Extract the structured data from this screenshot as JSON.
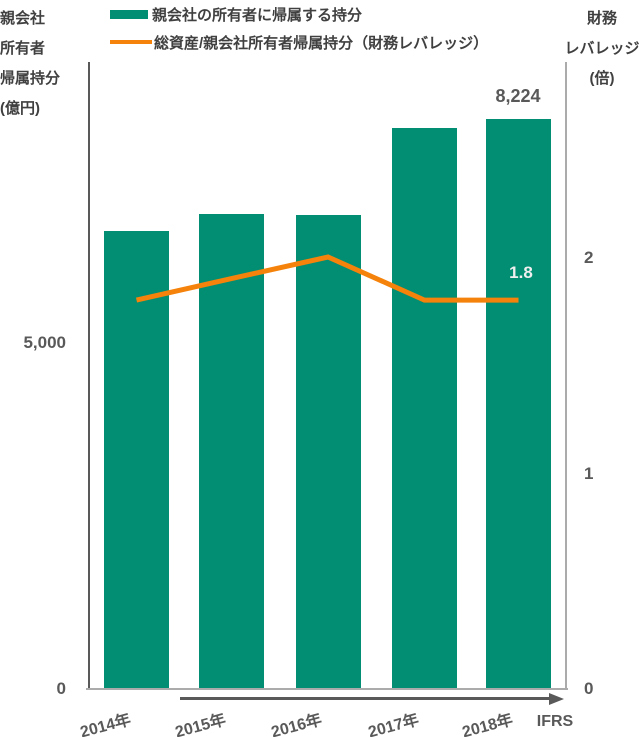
{
  "legend": {
    "items": [
      {
        "label": "親会社の所有者に帰属する持分",
        "marker": "bar-swatch",
        "color": "#028e72"
      },
      {
        "label": "総資産/親会社所有者帰属持分（財務レバレッジ）",
        "marker": "line-swatch",
        "color": "#f5820a"
      }
    ]
  },
  "axes": {
    "left": {
      "title_lines": [
        "親会社",
        "所有者",
        "帰属持分",
        "(億円)"
      ],
      "ticks": [
        {
          "label": "5,000",
          "value": 5000
        },
        {
          "label": "0",
          "value": 0
        }
      ]
    },
    "right": {
      "title_lines": [
        "財務",
        "レバレッジ",
        "(倍)"
      ],
      "ticks": [
        {
          "label": "2",
          "value": 2
        },
        {
          "label": "1",
          "value": 1
        },
        {
          "label": "0",
          "value": 0
        }
      ]
    }
  },
  "x_axis": {
    "labels": [
      "2014年",
      "2015年",
      "2016年",
      "2017年",
      "2018年"
    ],
    "ifrs_label": "IFRS"
  },
  "annotations": {
    "bar_value_label": "8,224",
    "line_value_label": "1.8"
  },
  "chart_data": {
    "type": "bar+line",
    "categories": [
      "2014年",
      "2015年",
      "2016年",
      "2017年",
      "2018年"
    ],
    "series": [
      {
        "name": "親会社の所有者に帰属する持分",
        "type": "bar",
        "axis": "left",
        "unit": "億円",
        "color": "#028e72",
        "values": [
          6600,
          6850,
          6840,
          8090,
          8224
        ],
        "values_estimated_except_labeled": true,
        "labeled_point": {
          "category": "2018年",
          "label": "8,224"
        }
      },
      {
        "name": "総資産/親会社所有者帰属持分（財務レバレッジ）",
        "type": "line",
        "axis": "right",
        "unit": "倍",
        "color": "#f5820a",
        "values": [
          1.8,
          1.9,
          2.0,
          1.8,
          1.8
        ],
        "labeled_point": {
          "category": "2018年",
          "label": "1.8"
        }
      }
    ],
    "left_axis": {
      "title": "親会社所有者帰属持分(億円)",
      "tick_values": [
        0,
        5000
      ],
      "range": [
        0,
        9000
      ]
    },
    "right_axis": {
      "title": "財務レバレッジ(倍)",
      "tick_values": [
        0,
        1,
        2
      ],
      "range": [
        0,
        2.9
      ]
    },
    "x_axis_arrow_label": "IFRS",
    "grid": false,
    "legend_position": "top"
  }
}
